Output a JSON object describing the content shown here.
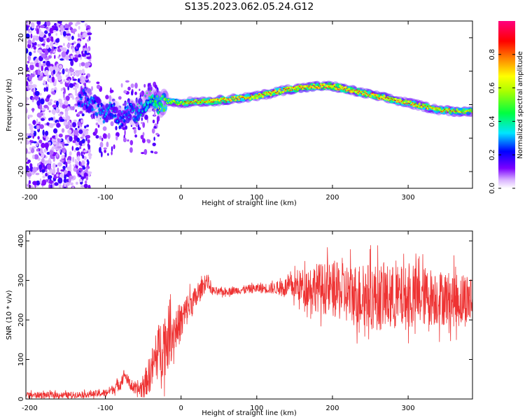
{
  "figure_title": "S135.2023.062.05.24.G12",
  "chart_data": [
    {
      "type": "heatmap",
      "xlabel": "Height of straight line (km)",
      "ylabel": "Frequency (Hz)",
      "xlim": [
        -205,
        385
      ],
      "ylim": [
        -25,
        25
      ],
      "x_ticks": [
        -200,
        -100,
        0,
        100,
        200,
        300
      ],
      "y_ticks": [
        -20,
        -10,
        0,
        10,
        20
      ],
      "colorbar": {
        "label": "Normalized spectral amplitude",
        "range": [
          0,
          1
        ],
        "ticks": [
          0.0,
          0.2,
          0.4,
          0.6,
          0.8
        ],
        "colors": [
          "#ffffff",
          "#7b00ff",
          "#0000ff",
          "#00e5ff",
          "#00ff40",
          "#ffff00",
          "#ff7f00",
          "#ff0000",
          "#ff007f"
        ]
      },
      "ridge": {
        "x": [
          -130,
          -115,
          -100,
          -90,
          -80,
          -70,
          -60,
          -50,
          -40,
          -30,
          -20,
          0,
          20,
          40,
          60,
          80,
          100,
          120,
          140,
          160,
          180,
          200,
          220,
          240,
          260,
          280,
          300,
          320,
          340,
          360,
          380
        ],
        "y": [
          2,
          0,
          -3,
          -1,
          -5,
          -2,
          -3,
          0,
          2,
          0,
          1,
          0.5,
          1,
          1,
          1.5,
          2,
          2.5,
          3.5,
          4.5,
          5,
          5.5,
          5.5,
          4.5,
          3.5,
          2.5,
          1.5,
          0.5,
          -0.5,
          -1.5,
          -2,
          -2
        ]
      },
      "peak_amplitude": {
        "x": [
          -130,
          -100,
          -80,
          -50,
          -30,
          0,
          50,
          100,
          150,
          200,
          250,
          300,
          350,
          380
        ],
        "y": [
          0.3,
          0.35,
          0.3,
          0.4,
          0.6,
          0.7,
          0.85,
          0.8,
          0.85,
          0.9,
          0.85,
          0.8,
          0.75,
          0.7
        ]
      },
      "noise_region_x": [
        -205,
        -120
      ]
    },
    {
      "type": "line",
      "xlabel": "Height of straight line (km)",
      "ylabel": "SNR (10 * v/v)",
      "xlim": [
        -205,
        385
      ],
      "ylim": [
        0,
        425
      ],
      "x_ticks": [
        -200,
        -100,
        0,
        100,
        200,
        300
      ],
      "y_ticks": [
        0,
        100,
        200,
        300,
        400
      ],
      "series_color": "#ee3333",
      "series": [
        {
          "x": [
            -205,
            -180,
            -150,
            -120,
            -100,
            -90,
            -80,
            -75,
            -70,
            -60,
            -50,
            -40,
            -30,
            -20,
            -10,
            0,
            10,
            20,
            30,
            35,
            40,
            50,
            75,
            100,
            125,
            150,
            175,
            200,
            225,
            250,
            275,
            300,
            325,
            350,
            370,
            385
          ],
          "mean": [
            10,
            10,
            10,
            12,
            15,
            25,
            40,
            65,
            45,
            20,
            30,
            70,
            120,
            150,
            170,
            195,
            235,
            255,
            290,
            300,
            275,
            270,
            275,
            280,
            280,
            285,
            285,
            275,
            265,
            260,
            255,
            255,
            260,
            255,
            250,
            255
          ],
          "spread": [
            8,
            8,
            8,
            8,
            10,
            12,
            18,
            12,
            15,
            15,
            30,
            50,
            70,
            90,
            60,
            50,
            40,
            30,
            20,
            20,
            12,
            10,
            10,
            12,
            15,
            35,
            60,
            70,
            80,
            85,
            85,
            80,
            75,
            70,
            70,
            70
          ]
        }
      ]
    }
  ]
}
